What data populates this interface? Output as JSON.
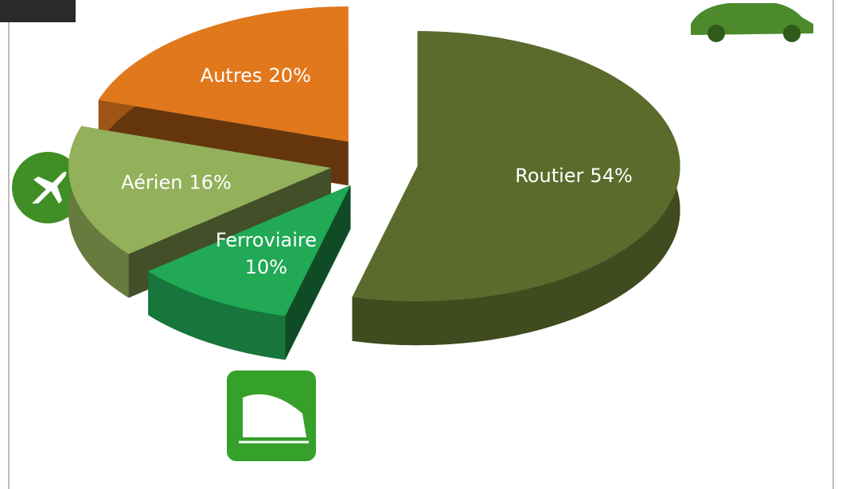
{
  "chart_data": {
    "type": "pie",
    "categories": [
      "Routier",
      "Ferroviaire",
      "Aérien",
      "Autres"
    ],
    "values": [
      54,
      10,
      16,
      20
    ],
    "value_labels": [
      "54%",
      "10%",
      "16%",
      "20%"
    ],
    "colors": [
      "#5b6b2c",
      "#21a955",
      "#93b05a",
      "#e1781c"
    ]
  }
}
